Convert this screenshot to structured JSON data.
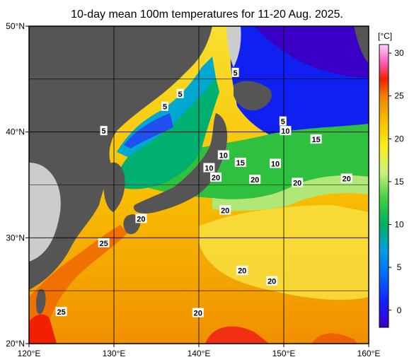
{
  "title": "10-day mean 100m temperatures for 11-20 Aug. 2025.",
  "axes": {
    "x_ticks": [
      {
        "value": 120,
        "label": "120°E"
      },
      {
        "value": 130,
        "label": "130°E"
      },
      {
        "value": 140,
        "label": "140°E"
      },
      {
        "value": 150,
        "label": "150°E"
      },
      {
        "value": 160,
        "label": "160°E"
      }
    ],
    "y_ticks": [
      {
        "value": 50,
        "label": "50°N"
      },
      {
        "value": 40,
        "label": "40°N"
      },
      {
        "value": 30,
        "label": "30°N"
      },
      {
        "value": 20,
        "label": "20°N"
      }
    ],
    "lon_range": [
      120,
      160
    ],
    "lat_range": [
      20,
      50
    ]
  },
  "colorbar": {
    "unit": "[°C]",
    "range": [
      -2,
      31
    ],
    "ticks": [
      {
        "value": 30,
        "label": "30"
      },
      {
        "value": 25,
        "label": "25"
      },
      {
        "value": 20,
        "label": "20"
      },
      {
        "value": 15,
        "label": "15"
      },
      {
        "value": 10,
        "label": "10"
      },
      {
        "value": 5,
        "label": "5"
      },
      {
        "value": 0,
        "label": "0"
      }
    ],
    "stops": [
      {
        "t": -2,
        "color": "#3b00c8"
      },
      {
        "t": 1,
        "color": "#1420ff"
      },
      {
        "t": 4,
        "color": "#0068ff"
      },
      {
        "t": 7,
        "color": "#00a0e0"
      },
      {
        "t": 10,
        "color": "#00b060"
      },
      {
        "t": 13,
        "color": "#40d040"
      },
      {
        "t": 16,
        "color": "#c8f080"
      },
      {
        "t": 19,
        "color": "#f8f020"
      },
      {
        "t": 22,
        "color": "#f8c000"
      },
      {
        "t": 25,
        "color": "#f08000"
      },
      {
        "t": 27,
        "color": "#f02000"
      },
      {
        "t": 29,
        "color": "#ff60c0"
      },
      {
        "t": 31,
        "color": "#ffd0ff"
      }
    ]
  },
  "contour_labels": [
    {
      "text": "5",
      "lon": 144.3,
      "lat": 45.6
    },
    {
      "text": "5",
      "lon": 137.8,
      "lat": 43.6
    },
    {
      "text": "5",
      "lon": 136.0,
      "lat": 42.4
    },
    {
      "text": "5",
      "lon": 128.8,
      "lat": 40.1
    },
    {
      "text": "5",
      "lon": 149.9,
      "lat": 41.0
    },
    {
      "text": "10",
      "lon": 150.2,
      "lat": 40.1
    },
    {
      "text": "15",
      "lon": 153.8,
      "lat": 39.3
    },
    {
      "text": "10",
      "lon": 142.9,
      "lat": 37.8
    },
    {
      "text": "15",
      "lon": 144.9,
      "lat": 37.1
    },
    {
      "text": "10",
      "lon": 149.0,
      "lat": 37.0
    },
    {
      "text": "10",
      "lon": 141.2,
      "lat": 36.6
    },
    {
      "text": "20",
      "lon": 142.0,
      "lat": 35.7
    },
    {
      "text": "20",
      "lon": 146.6,
      "lat": 35.5
    },
    {
      "text": "20",
      "lon": 151.6,
      "lat": 35.2
    },
    {
      "text": "20",
      "lon": 157.4,
      "lat": 35.6
    },
    {
      "text": "20",
      "lon": 143.1,
      "lat": 32.6
    },
    {
      "text": "20",
      "lon": 133.2,
      "lat": 31.8
    },
    {
      "text": "25",
      "lon": 128.8,
      "lat": 29.5
    },
    {
      "text": "20",
      "lon": 145.1,
      "lat": 26.9
    },
    {
      "text": "20",
      "lon": 148.6,
      "lat": 25.9
    },
    {
      "text": "20",
      "lon": 139.9,
      "lat": 22.9
    },
    {
      "text": "25",
      "lon": 123.8,
      "lat": 23.0
    }
  ]
}
